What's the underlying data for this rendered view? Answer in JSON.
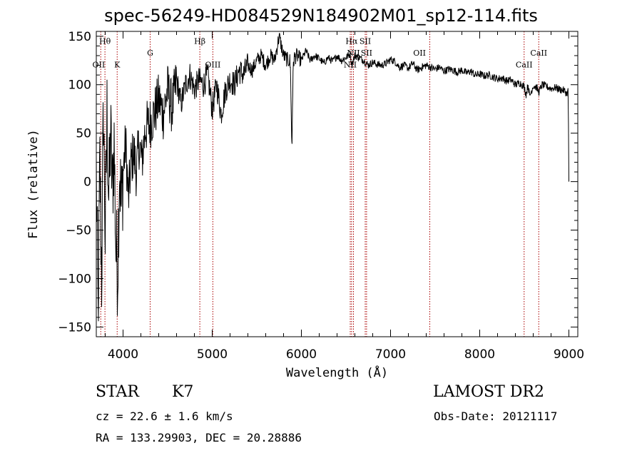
{
  "title": "spec-56249-HD084529N184902M01_sp12-114.fits",
  "info": {
    "objtype": "STAR",
    "subclass": "K7",
    "survey": "LAMOST DR2",
    "cz": "cz = 22.6 ± 1.6 km/s",
    "obs_date": "Obs-Date: 20121117",
    "radec": "RA = 133.29903, DEC =  20.28886"
  },
  "colors": {
    "spectrum": "#000000",
    "line_marker": "#aa0000",
    "axes": "#000000"
  },
  "chart_data": {
    "type": "line",
    "title": "spec-56249-HD084529N184902M01_sp12-114.fits",
    "xlabel": "Wavelength (Å)",
    "ylabel": "Flux (relative)",
    "xlim": [
      3700,
      9100
    ],
    "ylim": [
      -160,
      155
    ],
    "xticks": [
      4000,
      5000,
      6000,
      7000,
      8000,
      9000
    ],
    "xtick_labels": [
      "4000",
      "5000",
      "6000",
      "7000",
      "8000",
      "9000"
    ],
    "yticks": [
      -150,
      -100,
      -50,
      0,
      50,
      100,
      150
    ],
    "ytick_labels": [
      "−150",
      "−100",
      "−50",
      "0",
      "50",
      "100",
      "150"
    ],
    "grid": false,
    "series": [
      {
        "x": [
          3700,
          3720,
          3740,
          3760,
          3780,
          3800,
          3820,
          3840,
          3860,
          3880,
          3900,
          3920,
          3940,
          3960,
          3980,
          4000,
          4030,
          4060,
          4090,
          4120,
          4150,
          4180,
          4210,
          4250,
          4300,
          4350,
          4400,
          4450,
          4500,
          4550,
          4600,
          4650,
          4700,
          4750,
          4800,
          4850,
          4900,
          4950,
          5000,
          5050,
          5100,
          5150,
          5200,
          5250,
          5300,
          5350,
          5400,
          5450,
          5500,
          5550,
          5600,
          5650,
          5700,
          5750,
          5800,
          5850,
          5870,
          5880,
          5890,
          5895,
          5900,
          5910,
          5920,
          5950,
          6000,
          6050,
          6100,
          6150,
          6200,
          6250,
          6300,
          6350,
          6400,
          6450,
          6500,
          6550,
          6563,
          6600,
          6650,
          6700,
          6750,
          6800,
          6850,
          6900,
          6950,
          7000,
          7050,
          7100,
          7150,
          7200,
          7250,
          7300,
          7350,
          7400,
          7450,
          7500,
          7550,
          7600,
          7650,
          7700,
          7750,
          7800,
          7850,
          7900,
          7950,
          8000,
          8050,
          8100,
          8150,
          8200,
          8250,
          8300,
          8350,
          8400,
          8450,
          8498,
          8520,
          8542,
          8560,
          8600,
          8640,
          8662,
          8700,
          8750,
          8800,
          8850,
          8900,
          8950,
          8980,
          8990,
          8995,
          9000
        ],
        "y": [
          10,
          -140,
          20,
          -100,
          80,
          -60,
          70,
          -20,
          50,
          -10,
          40,
          -70,
          -90,
          20,
          -30,
          10,
          40,
          -20,
          20,
          30,
          10,
          40,
          20,
          55,
          60,
          70,
          85,
          70,
          95,
          75,
          105,
          80,
          100,
          110,
          95,
          105,
          100,
          110,
          75,
          100,
          70,
          95,
          105,
          100,
          115,
          110,
          120,
          115,
          125,
          130,
          120,
          130,
          125,
          150,
          130,
          125,
          125,
          110,
          45,
          40,
          80,
          120,
          128,
          130,
          125,
          135,
          125,
          130,
          127,
          122,
          128,
          124,
          130,
          125,
          128,
          132,
          120,
          130,
          128,
          125,
          120,
          123,
          121,
          120,
          122,
          126,
          124,
          118,
          120,
          117,
          122,
          115,
          118,
          120,
          118,
          116,
          118,
          114,
          116,
          115,
          113,
          115,
          112,
          114,
          110,
          111,
          109,
          110,
          108,
          106,
          107,
          104,
          105,
          100,
          102,
          98,
          90,
          100,
          88,
          99,
          97,
          92,
          100,
          98,
          96,
          97,
          95,
          94,
          90,
          95,
          60,
          0
        ]
      }
    ],
    "lines": [
      {
        "label": "Hθ",
        "x": 3797,
        "label_y": 142
      },
      {
        "label": "OII",
        "x": 3727,
        "label_y": 118
      },
      {
        "label": "K",
        "x": 3934,
        "label_y": 118
      },
      {
        "label": "G",
        "x": 4304,
        "label_y": 130
      },
      {
        "label": "Hβ",
        "x": 4861,
        "label_y": 142
      },
      {
        "label": "OIII",
        "x": 5007,
        "label_y": 118
      },
      {
        "label": "Hα",
        "x": 6563,
        "label_y": 142
      },
      {
        "label": "SII",
        "x": 6716,
        "label_y": 142
      },
      {
        "label": "NII",
        "x": 6584,
        "label_y": 130
      },
      {
        "label": "SII",
        "x": 6731,
        "label_y": 130
      },
      {
        "label": "NII",
        "x": 6548,
        "label_y": 118
      },
      {
        "label": "OII",
        "x": 7325,
        "label_y": 130
      },
      {
        "label": "CaII",
        "x": 8498,
        "label_y": 118
      },
      {
        "label": "CaII",
        "x": 8662,
        "label_y": 130
      }
    ],
    "line_marker_x": [
      3750,
      3797,
      3934,
      4304,
      4861,
      5007,
      6548,
      6563,
      6584,
      6716,
      6731,
      7440,
      8498,
      8662
    ]
  }
}
